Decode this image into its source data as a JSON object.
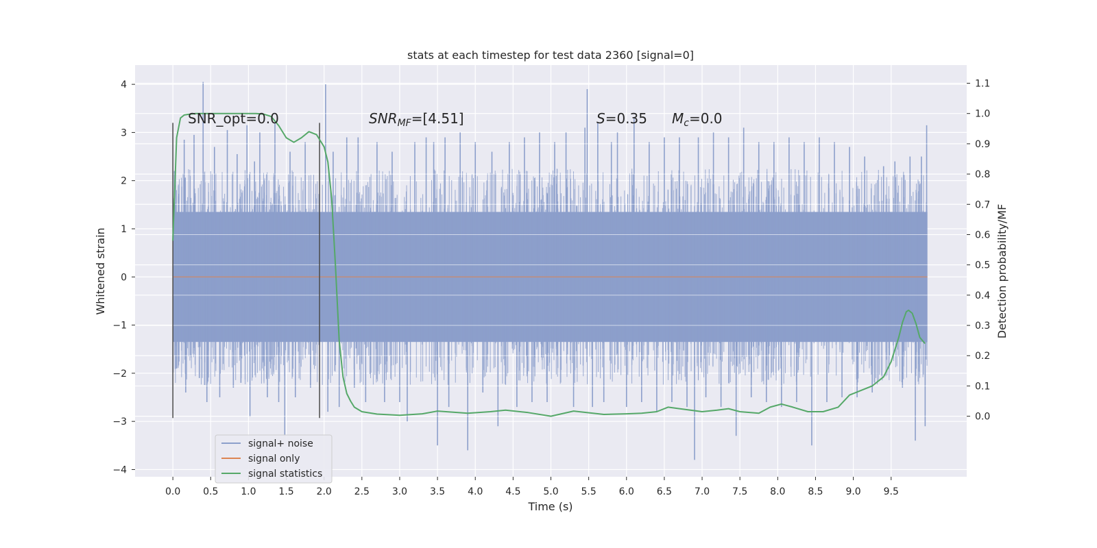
{
  "chart_data": {
    "type": "line",
    "title": "stats at each timestep for test data 2360 [signal=0]",
    "xlabel": "Time (s)",
    "ylabel": "Whitened strain",
    "y2label": "Detection probability/MF",
    "xlim": [
      -0.5,
      10.5
    ],
    "ylim": [
      -4.15,
      4.4
    ],
    "y2lim": [
      -0.2,
      1.16
    ],
    "x_ticks": [
      "0.0",
      "0.5",
      "1.0",
      "1.5",
      "2.0",
      "2.5",
      "3.0",
      "3.5",
      "4.0",
      "4.5",
      "5.0",
      "5.5",
      "6.0",
      "6.5",
      "7.0",
      "7.5",
      "8.0",
      "8.5",
      "9.0",
      "9.5"
    ],
    "y_ticks": [
      "4",
      "3",
      "2",
      "1",
      "0",
      "−1",
      "−2",
      "−3",
      "−4"
    ],
    "y2_ticks": [
      "1.1",
      "1.0",
      "0.9",
      "0.8",
      "0.7",
      "0.6",
      "0.5",
      "0.4",
      "0.3",
      "0.2",
      "0.1",
      "0.0"
    ],
    "grid": true,
    "legend": {
      "position": "lower-left",
      "entries": [
        {
          "label": "signal+ noise",
          "color": "#8c9fcb"
        },
        {
          "label": "signal only",
          "color": "#dd8452"
        },
        {
          "label": "signal statistics",
          "color": "#55a868"
        }
      ]
    },
    "annotations": {
      "snr_opt": "SNR_opt=0.0",
      "snr_mf_base": "SNR",
      "snr_mf_sub": "MF",
      "snr_mf_value": "=[4.51]",
      "s_symbol": "S",
      "s_value": "=0.35",
      "mc_symbol": "M",
      "mc_sub": "c",
      "mc_value": "=0.0"
    },
    "vertical_lines": [
      {
        "x": 0.0,
        "ymin": -2.93,
        "ymax": 3.2
      },
      {
        "x": 1.94,
        "ymin": -2.93,
        "ymax": 3.2
      }
    ],
    "series": [
      {
        "name": "signal+ noise",
        "axis": "left",
        "color": "#8c9fcb",
        "band_y": [
          -1.35,
          1.35
        ],
        "x_range": [
          0.0,
          9.98
        ],
        "spikes": [
          [
            0.02,
            2.2
          ],
          [
            0.05,
            -1.9
          ],
          [
            0.15,
            2.85
          ],
          [
            0.17,
            -2.4
          ],
          [
            0.28,
            2.95
          ],
          [
            0.35,
            -2.1
          ],
          [
            0.4,
            4.05
          ],
          [
            0.45,
            -2.6
          ],
          [
            0.55,
            2.7
          ],
          [
            0.62,
            -2.5
          ],
          [
            0.72,
            3.05
          ],
          [
            0.8,
            -2.3
          ],
          [
            0.85,
            2.55
          ],
          [
            0.9,
            -2.2
          ],
          [
            0.98,
            3.15
          ],
          [
            1.02,
            -2.9
          ],
          [
            1.08,
            2.4
          ],
          [
            1.15,
            3.0
          ],
          [
            1.25,
            -2.5
          ],
          [
            1.35,
            3.2
          ],
          [
            1.4,
            -2.6
          ],
          [
            1.48,
            -3.3
          ],
          [
            1.55,
            2.6
          ],
          [
            1.62,
            -2.5
          ],
          [
            1.75,
            2.8
          ],
          [
            1.82,
            -2.3
          ],
          [
            2.02,
            4.0
          ],
          [
            2.05,
            -2.8
          ],
          [
            2.12,
            2.6
          ],
          [
            2.2,
            -2.7
          ],
          [
            2.3,
            2.9
          ],
          [
            2.4,
            -2.3
          ],
          [
            2.45,
            2.9
          ],
          [
            2.55,
            -2.6
          ],
          [
            2.7,
            2.8
          ],
          [
            2.8,
            -2.6
          ],
          [
            2.9,
            2.6
          ],
          [
            3.0,
            -2.6
          ],
          [
            3.1,
            -3.0
          ],
          [
            3.2,
            2.8
          ],
          [
            3.35,
            2.9
          ],
          [
            3.45,
            2.8
          ],
          [
            3.5,
            -3.5
          ],
          [
            3.6,
            2.9
          ],
          [
            3.65,
            -2.7
          ],
          [
            3.8,
            3.0
          ],
          [
            3.9,
            -3.6
          ],
          [
            4.0,
            2.8
          ],
          [
            4.1,
            -2.4
          ],
          [
            4.22,
            2.6
          ],
          [
            4.3,
            -3.1
          ],
          [
            4.45,
            2.8
          ],
          [
            4.55,
            -2.7
          ],
          [
            4.65,
            2.9
          ],
          [
            4.75,
            -2.6
          ],
          [
            4.85,
            3.0
          ],
          [
            4.95,
            -2.6
          ],
          [
            5.05,
            2.8
          ],
          [
            5.2,
            3.0
          ],
          [
            5.3,
            -2.7
          ],
          [
            5.45,
            3.1
          ],
          [
            5.48,
            3.9
          ],
          [
            5.55,
            -2.7
          ],
          [
            5.62,
            3.2
          ],
          [
            5.7,
            -2.6
          ],
          [
            5.8,
            2.8
          ],
          [
            5.88,
            3.0
          ],
          [
            6.0,
            -2.7
          ],
          [
            6.1,
            3.3
          ],
          [
            6.2,
            -2.6
          ],
          [
            6.3,
            2.8
          ],
          [
            6.4,
            -2.8
          ],
          [
            6.5,
            2.9
          ],
          [
            6.6,
            -2.6
          ],
          [
            6.7,
            2.9
          ],
          [
            6.8,
            -2.7
          ],
          [
            6.9,
            -3.8
          ],
          [
            6.95,
            2.9
          ],
          [
            7.05,
            -2.5
          ],
          [
            7.15,
            3.0
          ],
          [
            7.25,
            -2.7
          ],
          [
            7.35,
            2.9
          ],
          [
            7.45,
            -3.3
          ],
          [
            7.55,
            3.1
          ],
          [
            7.65,
            -2.5
          ],
          [
            7.75,
            2.8
          ],
          [
            7.85,
            -2.6
          ],
          [
            7.95,
            2.8
          ],
          [
            8.05,
            -2.7
          ],
          [
            8.15,
            2.9
          ],
          [
            8.25,
            -2.6
          ],
          [
            8.35,
            2.8
          ],
          [
            8.45,
            -3.5
          ],
          [
            8.55,
            2.9
          ],
          [
            8.65,
            -2.6
          ],
          [
            8.75,
            2.8
          ],
          [
            8.85,
            -2.5
          ],
          [
            8.95,
            2.7
          ],
          [
            9.05,
            -2.5
          ],
          [
            9.15,
            2.5
          ],
          [
            9.25,
            -2.4
          ],
          [
            9.4,
            2.3
          ],
          [
            9.55,
            2.4
          ],
          [
            9.65,
            -2.3
          ],
          [
            9.75,
            2.5
          ],
          [
            9.82,
            -3.4
          ],
          [
            9.9,
            2.5
          ],
          [
            9.95,
            -3.1
          ],
          [
            9.97,
            3.15
          ]
        ]
      },
      {
        "name": "signal only",
        "axis": "left",
        "color": "#dd8452",
        "x": [
          0.0,
          9.98
        ],
        "y": [
          0.0,
          0.0
        ]
      },
      {
        "name": "signal statistics",
        "axis": "right",
        "color": "#55a868",
        "x": [
          0.0,
          0.05,
          0.1,
          0.15,
          0.2,
          0.3,
          0.4,
          0.5,
          0.7,
          0.9,
          1.1,
          1.2,
          1.3,
          1.4,
          1.5,
          1.6,
          1.7,
          1.8,
          1.9,
          2.0,
          2.05,
          2.1,
          2.15,
          2.2,
          2.25,
          2.3,
          2.35,
          2.4,
          2.5,
          2.7,
          3.0,
          3.3,
          3.5,
          3.9,
          4.2,
          4.4,
          4.7,
          5.0,
          5.3,
          5.7,
          6.0,
          6.2,
          6.4,
          6.55,
          6.7,
          7.0,
          7.2,
          7.35,
          7.5,
          7.75,
          7.9,
          8.05,
          8.2,
          8.4,
          8.6,
          8.8,
          8.95,
          9.1,
          9.25,
          9.4,
          9.5,
          9.6,
          9.65,
          9.7,
          9.73,
          9.78,
          9.83,
          9.88,
          9.95
        ],
        "y": [
          0.58,
          0.92,
          0.985,
          0.995,
          0.997,
          1.0,
          1.0,
          1.0,
          1.0,
          1.0,
          1.0,
          0.998,
          0.99,
          0.96,
          0.92,
          0.905,
          0.92,
          0.94,
          0.93,
          0.89,
          0.84,
          0.72,
          0.5,
          0.25,
          0.13,
          0.075,
          0.05,
          0.03,
          0.015,
          0.007,
          0.003,
          0.008,
          0.017,
          0.01,
          0.015,
          0.02,
          0.012,
          0.0,
          0.017,
          0.006,
          0.008,
          0.01,
          0.015,
          0.03,
          0.025,
          0.015,
          0.02,
          0.025,
          0.015,
          0.01,
          0.03,
          0.04,
          0.03,
          0.015,
          0.015,
          0.03,
          0.07,
          0.085,
          0.1,
          0.13,
          0.18,
          0.26,
          0.31,
          0.345,
          0.35,
          0.34,
          0.305,
          0.26,
          0.24
        ]
      }
    ]
  }
}
